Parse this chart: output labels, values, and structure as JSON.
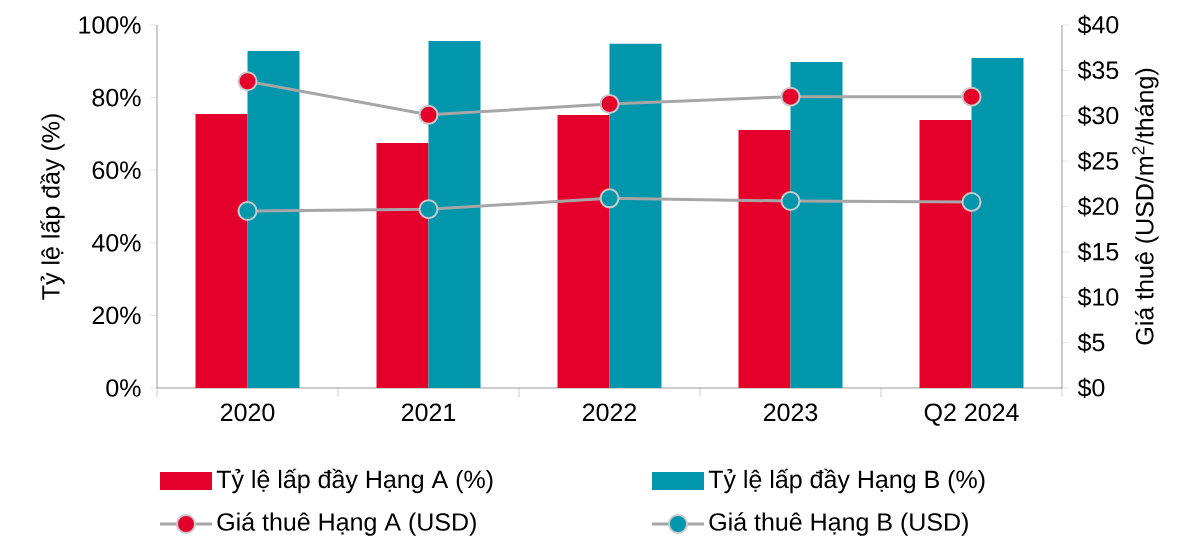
{
  "chart_data": {
    "type": "bar",
    "ylabel": "Tỷ lệ lấp đầy (%)",
    "y2label": "Giá thuê (USD/m$^{2}$/tháng)",
    "categories": [
      "2020",
      "2021",
      "2022",
      "2023",
      "Q2 2024"
    ],
    "series": [
      {
        "name": "Tỷ lệ lấp đầy Hạng A (%)",
        "color": "#e4002b",
        "values": [
          75.5,
          67.5,
          75.2,
          71.1,
          73.8
        ]
      },
      {
        "name": "Tỷ lệ lấp đầy Hạng B (%)",
        "color": "#0096ac",
        "values": [
          92.8,
          95.6,
          94.8,
          89.8,
          90.9
        ]
      },
      {
        "name": "Giá thuê Hạng A (USD)",
        "type": "line",
        "axis": "y2",
        "color": "#e4002b",
        "values": [
          33.8,
          30.1,
          31.3,
          32.1,
          32.1
        ]
      },
      {
        "name": "Giá thuê Hạng B (USD)",
        "type": "line",
        "axis": "y2",
        "color": "#0096ac",
        "values": [
          19.5,
          19.7,
          20.9,
          20.6,
          20.5
        ]
      }
    ],
    "ylim": [
      0,
      100
    ],
    "yticks": [
      {
        "value": 0,
        "label": "0%"
      },
      {
        "value": 20,
        "label": "20%"
      },
      {
        "value": 40,
        "label": "40%"
      },
      {
        "value": 60,
        "label": "60%"
      },
      {
        "value": 80,
        "label": "80%"
      },
      {
        "value": 100,
        "label": "100%"
      }
    ],
    "y2lim": [
      0,
      40
    ],
    "y2ticks": [
      {
        "value": 0,
        "label": "$0"
      },
      {
        "value": 5,
        "label": "$5"
      },
      {
        "value": 10,
        "label": "$10"
      },
      {
        "value": 15,
        "label": "$15"
      },
      {
        "value": 20,
        "label": "$20"
      },
      {
        "value": 25,
        "label": "$25"
      },
      {
        "value": 30,
        "label": "$30"
      },
      {
        "value": 35,
        "label": "$35"
      },
      {
        "value": 40,
        "label": "$40"
      }
    ],
    "grid": false,
    "legend": "bottom",
    "marker": "circle",
    "line_style": "solid"
  }
}
